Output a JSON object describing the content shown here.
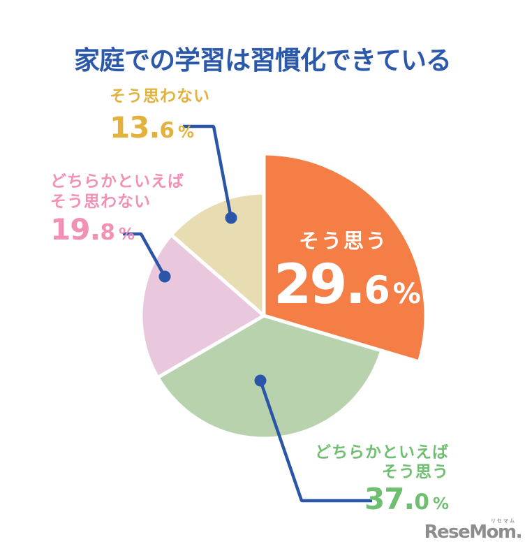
{
  "title": "家庭での学習は習慣化できている",
  "colors": {
    "title_blue": "#2B58A9",
    "leader_blue": "#2B56A8",
    "slice_stroke": "#FFFFFF",
    "logo_gray": "#8D8D8D"
  },
  "chart_data": {
    "type": "pie",
    "title": "家庭での学習は習慣化できている",
    "unit": "%",
    "direction": "clockwise",
    "start_angle_deg": 0,
    "legend_position": "callout-labels",
    "center": [
      378,
      452
    ],
    "radius": 176,
    "highlight_radius": 232,
    "slices": [
      {
        "key": "agree",
        "label": "そう思う",
        "value": 29.6,
        "color": "#F57E46",
        "text_color": "#FFFFFF",
        "highlighted": true
      },
      {
        "key": "somewhat_agree",
        "label": "どちらかといえばそう思う",
        "value": 37.0,
        "color": "#B9D2AE",
        "text_color": "#6FBF71",
        "highlighted": false
      },
      {
        "key": "somewhat_disagree",
        "label": "どちらかといえばそう思わない",
        "value": 19.8,
        "color": "#E9C8DD",
        "text_color": "#F290B5",
        "highlighted": false
      },
      {
        "key": "disagree",
        "label": "そう思わない",
        "value": 13.6,
        "color": "#E7DCB2",
        "text_color": "#E2B23C",
        "highlighted": false
      }
    ]
  },
  "callouts": {
    "agree": {
      "label": "そう思う",
      "int": "29.",
      "dec": "6",
      "unit": "%"
    },
    "somewhat_agree": {
      "line1": "どちらかといえば",
      "line2": "そう思う",
      "int": "37.",
      "dec": "0",
      "unit": "%"
    },
    "somewhat_disagree": {
      "line1": "どちらかといえば",
      "line2": "そう思わない",
      "int": "19.",
      "dec": "8",
      "unit": "%"
    },
    "disagree": {
      "line1": "そう思わない",
      "int": "13.",
      "dec": "6",
      "unit": "%"
    }
  },
  "brand": {
    "logo_text": "ReseMom.",
    "logo_ruby": "リセマム"
  }
}
